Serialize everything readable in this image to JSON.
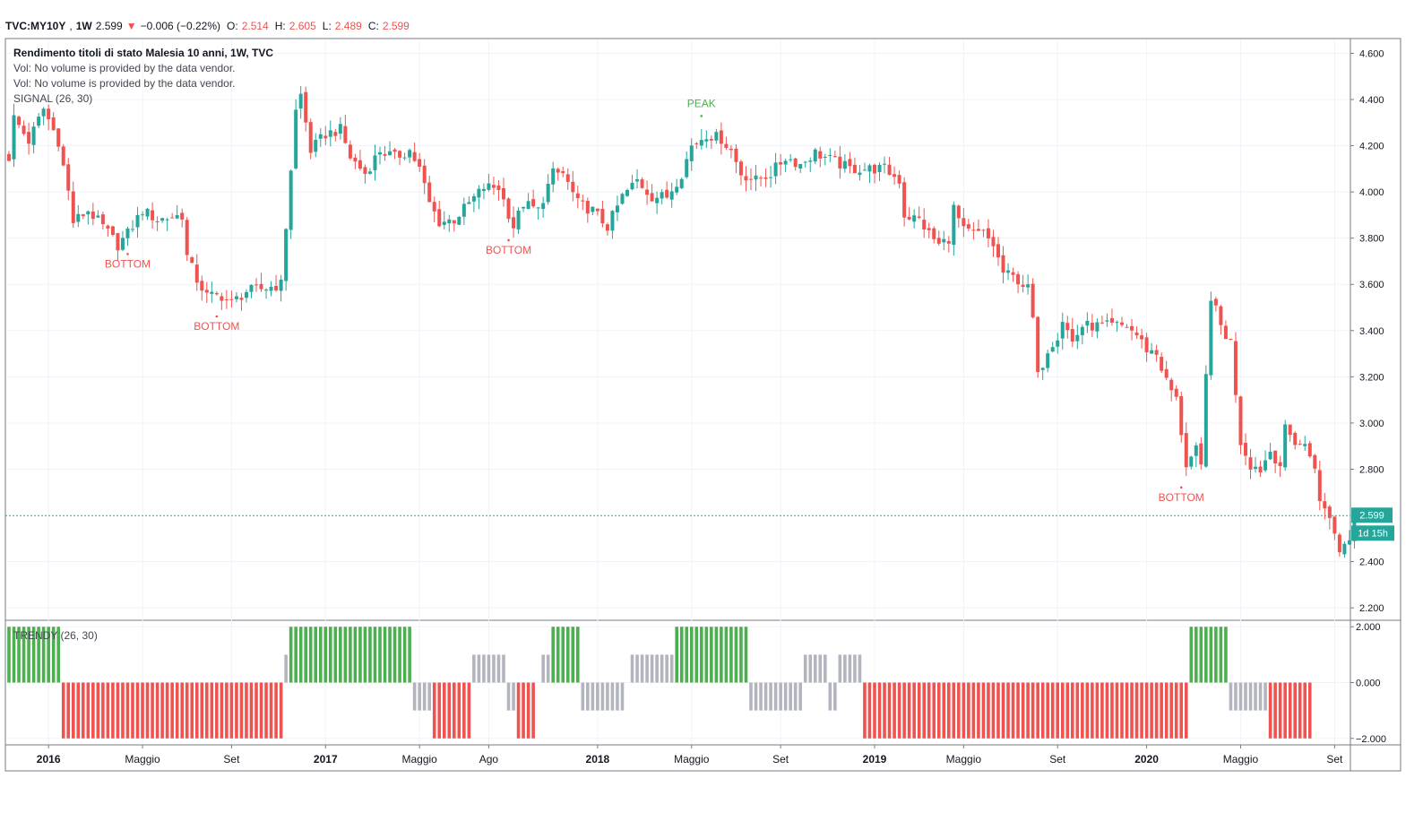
{
  "header": {
    "symbol": "TVC:MY10Y",
    "interval": "1W",
    "last": "2.599",
    "change": "−0.006 (−0.22%)",
    "o_label": "O:",
    "o": "2.514",
    "h_label": "H:",
    "h": "2.605",
    "l_label": "L:",
    "l": "2.489",
    "c_label": "C:",
    "c": "2.599"
  },
  "legend": {
    "title": "Rendimento titoli di stato Malesia 10 anni, 1W, TVC",
    "vol1": "Vol: No volume is provided by the data vendor.",
    "vol2": "Vol: No volume is provided by the data vendor.",
    "signal": "SIGNAL (26, 30)"
  },
  "trendy_label": "TRENDY (26, 30)",
  "price_tag": "2.599",
  "countdown_tag": "1d 15h",
  "colors": {
    "up": "#26a69a",
    "down": "#ef5350",
    "green_bar": "#4caf50",
    "red_bar": "#ef5350",
    "gray_bar": "#b2b5be"
  },
  "chart_data": {
    "type": "candlestick",
    "interval": "1W",
    "y_ticks": [
      "4.600",
      "4.400",
      "4.200",
      "4.000",
      "3.800",
      "3.600",
      "3.400",
      "3.200",
      "3.000",
      "2.800",
      "2.400",
      "2.200"
    ],
    "ylim": [
      2.15,
      4.66
    ],
    "x_ticks": [
      {
        "label": "2016",
        "bold": true
      },
      {
        "label": "Maggio",
        "bold": false
      },
      {
        "label": "Set",
        "bold": false
      },
      {
        "label": "2017",
        "bold": true
      },
      {
        "label": "Maggio",
        "bold": false
      },
      {
        "label": "Ago",
        "bold": false
      },
      {
        "label": "2018",
        "bold": true
      },
      {
        "label": "Maggio",
        "bold": false
      },
      {
        "label": "Set",
        "bold": false
      },
      {
        "label": "2019",
        "bold": true
      },
      {
        "label": "Maggio",
        "bold": false
      },
      {
        "label": "Set",
        "bold": false
      },
      {
        "label": "2020",
        "bold": true
      },
      {
        "label": "Maggio",
        "bold": false
      },
      {
        "label": "Set",
        "bold": false
      }
    ],
    "x_tick_weeks": [
      8,
      27,
      45,
      64,
      83,
      97,
      119,
      138,
      156,
      175,
      193,
      212,
      230,
      249,
      268
    ],
    "last_close": 2.599,
    "anchors": [
      [
        0,
        4.15
      ],
      [
        1,
        4.32
      ],
      [
        4,
        4.22
      ],
      [
        7,
        4.36
      ],
      [
        10,
        4.22
      ],
      [
        12,
        4.0
      ],
      [
        13,
        3.87
      ],
      [
        16,
        3.92
      ],
      [
        19,
        3.85
      ],
      [
        22,
        3.77
      ],
      [
        24,
        3.82
      ],
      [
        27,
        3.92
      ],
      [
        30,
        3.88
      ],
      [
        35,
        3.9
      ],
      [
        36,
        3.72
      ],
      [
        38,
        3.62
      ],
      [
        40,
        3.55
      ],
      [
        43,
        3.55
      ],
      [
        45,
        3.52
      ],
      [
        48,
        3.57
      ],
      [
        51,
        3.58
      ],
      [
        55,
        3.6
      ],
      [
        56,
        3.85
      ],
      [
        58,
        4.35
      ],
      [
        59,
        4.42
      ],
      [
        61,
        4.18
      ],
      [
        64,
        4.25
      ],
      [
        67,
        4.27
      ],
      [
        69,
        4.15
      ],
      [
        72,
        4.08
      ],
      [
        75,
        4.18
      ],
      [
        78,
        4.15
      ],
      [
        81,
        4.18
      ],
      [
        83,
        4.1
      ],
      [
        85,
        3.95
      ],
      [
        87,
        3.87
      ],
      [
        90,
        3.88
      ],
      [
        93,
        3.95
      ],
      [
        96,
        4.02
      ],
      [
        99,
        4.02
      ],
      [
        102,
        3.85
      ],
      [
        104,
        3.95
      ],
      [
        107,
        3.92
      ],
      [
        110,
        4.08
      ],
      [
        112,
        4.08
      ],
      [
        115,
        3.95
      ],
      [
        118,
        3.92
      ],
      [
        121,
        3.85
      ],
      [
        124,
        3.98
      ],
      [
        127,
        4.05
      ],
      [
        130,
        3.98
      ],
      [
        133,
        3.98
      ],
      [
        136,
        4.08
      ],
      [
        138,
        4.2
      ],
      [
        141,
        4.25
      ],
      [
        144,
        4.23
      ],
      [
        146,
        4.18
      ],
      [
        148,
        4.08
      ],
      [
        151,
        4.05
      ],
      [
        154,
        4.08
      ],
      [
        157,
        4.15
      ],
      [
        160,
        4.12
      ],
      [
        163,
        4.17
      ],
      [
        167,
        4.13
      ],
      [
        170,
        4.1
      ],
      [
        173,
        4.1
      ],
      [
        177,
        4.1
      ],
      [
        180,
        4.05
      ],
      [
        181,
        3.9
      ],
      [
        184,
        3.88
      ],
      [
        186,
        3.82
      ],
      [
        188,
        3.77
      ],
      [
        190,
        3.8
      ],
      [
        191,
        3.93
      ],
      [
        193,
        3.83
      ],
      [
        195,
        3.82
      ],
      [
        197,
        3.82
      ],
      [
        199,
        3.77
      ],
      [
        201,
        3.65
      ],
      [
        204,
        3.62
      ],
      [
        206,
        3.58
      ],
      [
        207,
        3.45
      ],
      [
        208,
        3.2
      ],
      [
        210,
        3.32
      ],
      [
        212,
        3.38
      ],
      [
        213,
        3.45
      ],
      [
        215,
        3.35
      ],
      [
        217,
        3.42
      ],
      [
        220,
        3.42
      ],
      [
        223,
        3.42
      ],
      [
        226,
        3.42
      ],
      [
        228,
        3.38
      ],
      [
        230,
        3.32
      ],
      [
        232,
        3.3
      ],
      [
        234,
        3.18
      ],
      [
        236,
        3.1
      ],
      [
        238,
        2.82
      ],
      [
        240,
        2.88
      ],
      [
        241,
        2.8
      ],
      [
        242,
        3.2
      ],
      [
        243,
        3.55
      ],
      [
        245,
        3.42
      ],
      [
        246,
        3.38
      ],
      [
        247,
        3.35
      ],
      [
        249,
        2.92
      ],
      [
        251,
        2.82
      ],
      [
        253,
        2.8
      ],
      [
        255,
        2.88
      ],
      [
        257,
        2.82
      ],
      [
        258,
        2.97
      ],
      [
        260,
        2.92
      ],
      [
        262,
        2.9
      ],
      [
        264,
        2.82
      ],
      [
        265,
        2.65
      ],
      [
        267,
        2.6
      ],
      [
        268,
        2.52
      ],
      [
        269,
        2.45
      ],
      [
        270,
        2.48
      ],
      [
        271,
        2.51
      ],
      [
        272,
        2.599
      ]
    ],
    "annotations": [
      {
        "text": "BOTTOM",
        "week": 24,
        "price": 3.77,
        "side": "below",
        "color": "#ef5350"
      },
      {
        "text": "BOTTOM",
        "week": 42,
        "price": 3.5,
        "side": "below",
        "color": "#ef5350"
      },
      {
        "text": "BOTTOM",
        "week": 101,
        "price": 3.83,
        "side": "below",
        "color": "#ef5350"
      },
      {
        "text": "PEAK",
        "week": 140,
        "price": 4.29,
        "side": "above",
        "color": "#4caf50"
      },
      {
        "text": "BOTTOM",
        "week": 237,
        "price": 2.76,
        "side": "below",
        "color": "#ef5350"
      }
    ],
    "trendy": {
      "yticks": [
        "2.000",
        "0.000",
        "−2.000"
      ],
      "ylim": [
        -2.2,
        2.2
      ],
      "segments": [
        {
          "from": 0,
          "to": 10,
          "state": "up"
        },
        {
          "from": 11,
          "to": 55,
          "state": "down"
        },
        {
          "from": 56,
          "to": 56,
          "state": "neutral-up"
        },
        {
          "from": 57,
          "to": 81,
          "state": "up"
        },
        {
          "from": 82,
          "to": 85,
          "state": "neutral-down"
        },
        {
          "from": 86,
          "to": 93,
          "state": "down"
        },
        {
          "from": 94,
          "to": 100,
          "state": "neutral-up"
        },
        {
          "from": 101,
          "to": 102,
          "state": "neutral-down"
        },
        {
          "from": 103,
          "to": 106,
          "state": "down"
        },
        {
          "from": 108,
          "to": 109,
          "state": "neutral-up"
        },
        {
          "from": 110,
          "to": 115,
          "state": "up"
        },
        {
          "from": 116,
          "to": 124,
          "state": "neutral-down"
        },
        {
          "from": 126,
          "to": 134,
          "state": "neutral-up"
        },
        {
          "from": 135,
          "to": 149,
          "state": "up"
        },
        {
          "from": 150,
          "to": 160,
          "state": "neutral-down"
        },
        {
          "from": 161,
          "to": 165,
          "state": "neutral-up"
        },
        {
          "from": 166,
          "to": 167,
          "state": "neutral-down"
        },
        {
          "from": 168,
          "to": 172,
          "state": "neutral-up"
        },
        {
          "from": 173,
          "to": 238,
          "state": "down"
        },
        {
          "from": 239,
          "to": 246,
          "state": "up"
        },
        {
          "from": 247,
          "to": 254,
          "state": "neutral-down"
        },
        {
          "from": 255,
          "to": 263,
          "state": "down"
        }
      ]
    }
  }
}
